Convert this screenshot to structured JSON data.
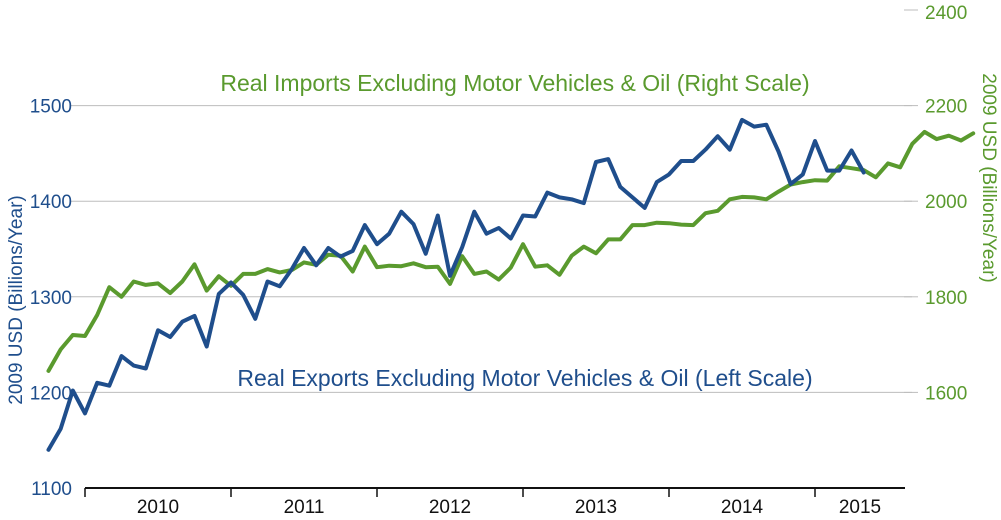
{
  "chart_data": {
    "type": "line",
    "title": "",
    "x_labels": [
      "2010",
      "2011",
      "2012",
      "2013",
      "2014",
      "2015"
    ],
    "left_axis": {
      "label": "2009 USD (Billions/Year)",
      "ylim": [
        1100,
        1600
      ],
      "ticks": [
        "1100",
        "1200",
        "1300",
        "1400",
        "1500"
      ],
      "tick_values": [
        1100,
        1200,
        1300,
        1400,
        1500
      ]
    },
    "right_axis": {
      "label": "2009 USD (Billions/Year)",
      "ylim": [
        1400,
        2400
      ],
      "ticks": [
        "1600",
        "1800",
        "2000",
        "2200",
        "2400"
      ],
      "tick_values": [
        1600,
        1800,
        2000,
        2200,
        2400
      ]
    },
    "series": [
      {
        "name": "Real Imports Excluding Motor Vehicles & Oil (Right Scale)",
        "axis": "right",
        "color": "#5a9a2e",
        "start": "2009-10",
        "values": [
          1645,
          1690,
          1720,
          1718,
          1762,
          1820,
          1800,
          1832,
          1825,
          1828,
          1808,
          1832,
          1868,
          1813,
          1843,
          1823,
          1848,
          1848,
          1858,
          1851,
          1856,
          1872,
          1867,
          1888,
          1886,
          1853,
          1905,
          1862,
          1865,
          1864,
          1870,
          1862,
          1863,
          1827,
          1885,
          1848,
          1853,
          1836,
          1861,
          1910,
          1863,
          1866,
          1846,
          1886,
          1905,
          1891,
          1920,
          1920,
          1950,
          1950,
          1955,
          1954,
          1951,
          1950,
          1975,
          1980,
          2004,
          2009,
          2008,
          2004,
          2020,
          2035,
          2040,
          2044,
          2043,
          2073,
          2069,
          2065,
          2050,
          2079,
          2071,
          2120,
          2145,
          2130,
          2137,
          2127,
          2142
        ]
      },
      {
        "name": "Real Exports Excluding Motor Vehicles & Oil (Left Scale)",
        "axis": "left",
        "color": "#1f4e8c",
        "start": "2009-10",
        "values": [
          1140,
          1162,
          1202,
          1178,
          1210,
          1207,
          1238,
          1228,
          1225,
          1265,
          1258,
          1274,
          1280,
          1248,
          1303,
          1315,
          1302,
          1277,
          1316,
          1311,
          1329,
          1351,
          1333,
          1351,
          1342,
          1348,
          1375,
          1355,
          1366,
          1389,
          1376,
          1345,
          1385,
          1322,
          1352,
          1389,
          1366,
          1372,
          1361,
          1385,
          1384,
          1409,
          1404,
          1402,
          1398,
          1441,
          1444,
          1415,
          1404,
          1393,
          1420,
          1428,
          1442,
          1442,
          1454,
          1468,
          1454,
          1485,
          1478,
          1480,
          1452,
          1418,
          1428,
          1463,
          1432,
          1432,
          1453,
          1430
        ]
      }
    ],
    "annotations": {
      "imports_label": "Real Imports Excluding Motor Vehicles & Oil (Right Scale)",
      "exports_label": "Real Exports Excluding Motor Vehicles & Oil (Left Scale)"
    }
  }
}
